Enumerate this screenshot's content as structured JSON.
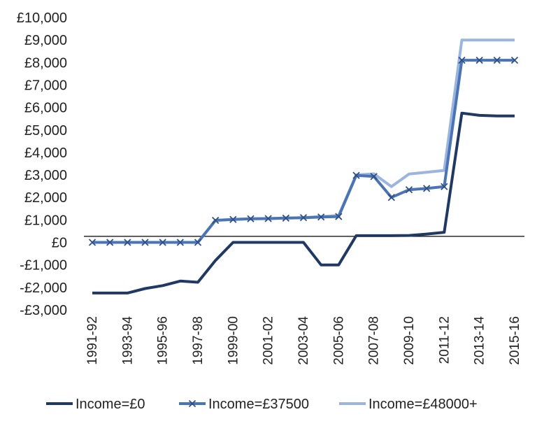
{
  "chart_data": {
    "type": "line",
    "title": "",
    "xlabel": "",
    "ylabel": "",
    "ylim": [
      -3000,
      10000
    ],
    "y_ticks": [
      10000,
      9000,
      8000,
      7000,
      6000,
      5000,
      4000,
      3000,
      2000,
      1000,
      0,
      -1000,
      -2000,
      -3000
    ],
    "y_tick_labels": [
      "£10,000",
      "£9,000",
      "£8,000",
      "£7,000",
      "£6,000",
      "£5,000",
      "£4,000",
      "£3,000",
      "£2,000",
      "£1,000",
      "£0",
      "-£1,000",
      "-£2,000",
      "-£3,000"
    ],
    "categories": [
      "1991-92",
      "1992-93",
      "1993-94",
      "1994-95",
      "1995-96",
      "1996-97",
      "1997-98",
      "1998-99",
      "1999-00",
      "2000-01",
      "2001-02",
      "2002-03",
      "2003-04",
      "2004-05",
      "2005-06",
      "2006-07",
      "2007-08",
      "2008-09",
      "2009-10",
      "2010-11",
      "2011-12",
      "2012-13",
      "2013-14",
      "2014-15",
      "2015-16"
    ],
    "x_tick_labels": [
      "1991-92",
      "1993-94",
      "1995-96",
      "1997-98",
      "1999-00",
      "2001-02",
      "2003-04",
      "2005-06",
      "2007-08",
      "2009-10",
      "2011-12",
      "2013-14",
      "2015-16"
    ],
    "grid": false,
    "legend_position": "bottom",
    "series": [
      {
        "name": "Income=£0",
        "color": "#203864",
        "marker": "none",
        "values": [
          -2250,
          -2250,
          -2250,
          -2050,
          -1920,
          -1720,
          -1770,
          -800,
          0,
          0,
          0,
          0,
          0,
          -1000,
          -1000,
          300,
          300,
          300,
          310,
          370,
          450,
          5750,
          5650,
          5620,
          5620
        ]
      },
      {
        "name": "Income=£37500",
        "color": "#4a74b4",
        "marker": "x",
        "values": [
          0,
          0,
          0,
          0,
          0,
          0,
          0,
          980,
          1020,
          1050,
          1060,
          1080,
          1100,
          1130,
          1150,
          2980,
          2930,
          2000,
          2340,
          2400,
          2480,
          8100,
          8100,
          8100,
          8100
        ]
      },
      {
        "name": "Income=£48000+",
        "color": "#9bb5de",
        "marker": "none",
        "values": [
          0,
          0,
          0,
          0,
          0,
          0,
          0,
          980,
          1020,
          1050,
          1060,
          1080,
          1100,
          1150,
          1200,
          3000,
          3050,
          2480,
          3040,
          3120,
          3200,
          9000,
          9000,
          9000,
          9000
        ]
      }
    ],
    "reference_line": 270
  }
}
